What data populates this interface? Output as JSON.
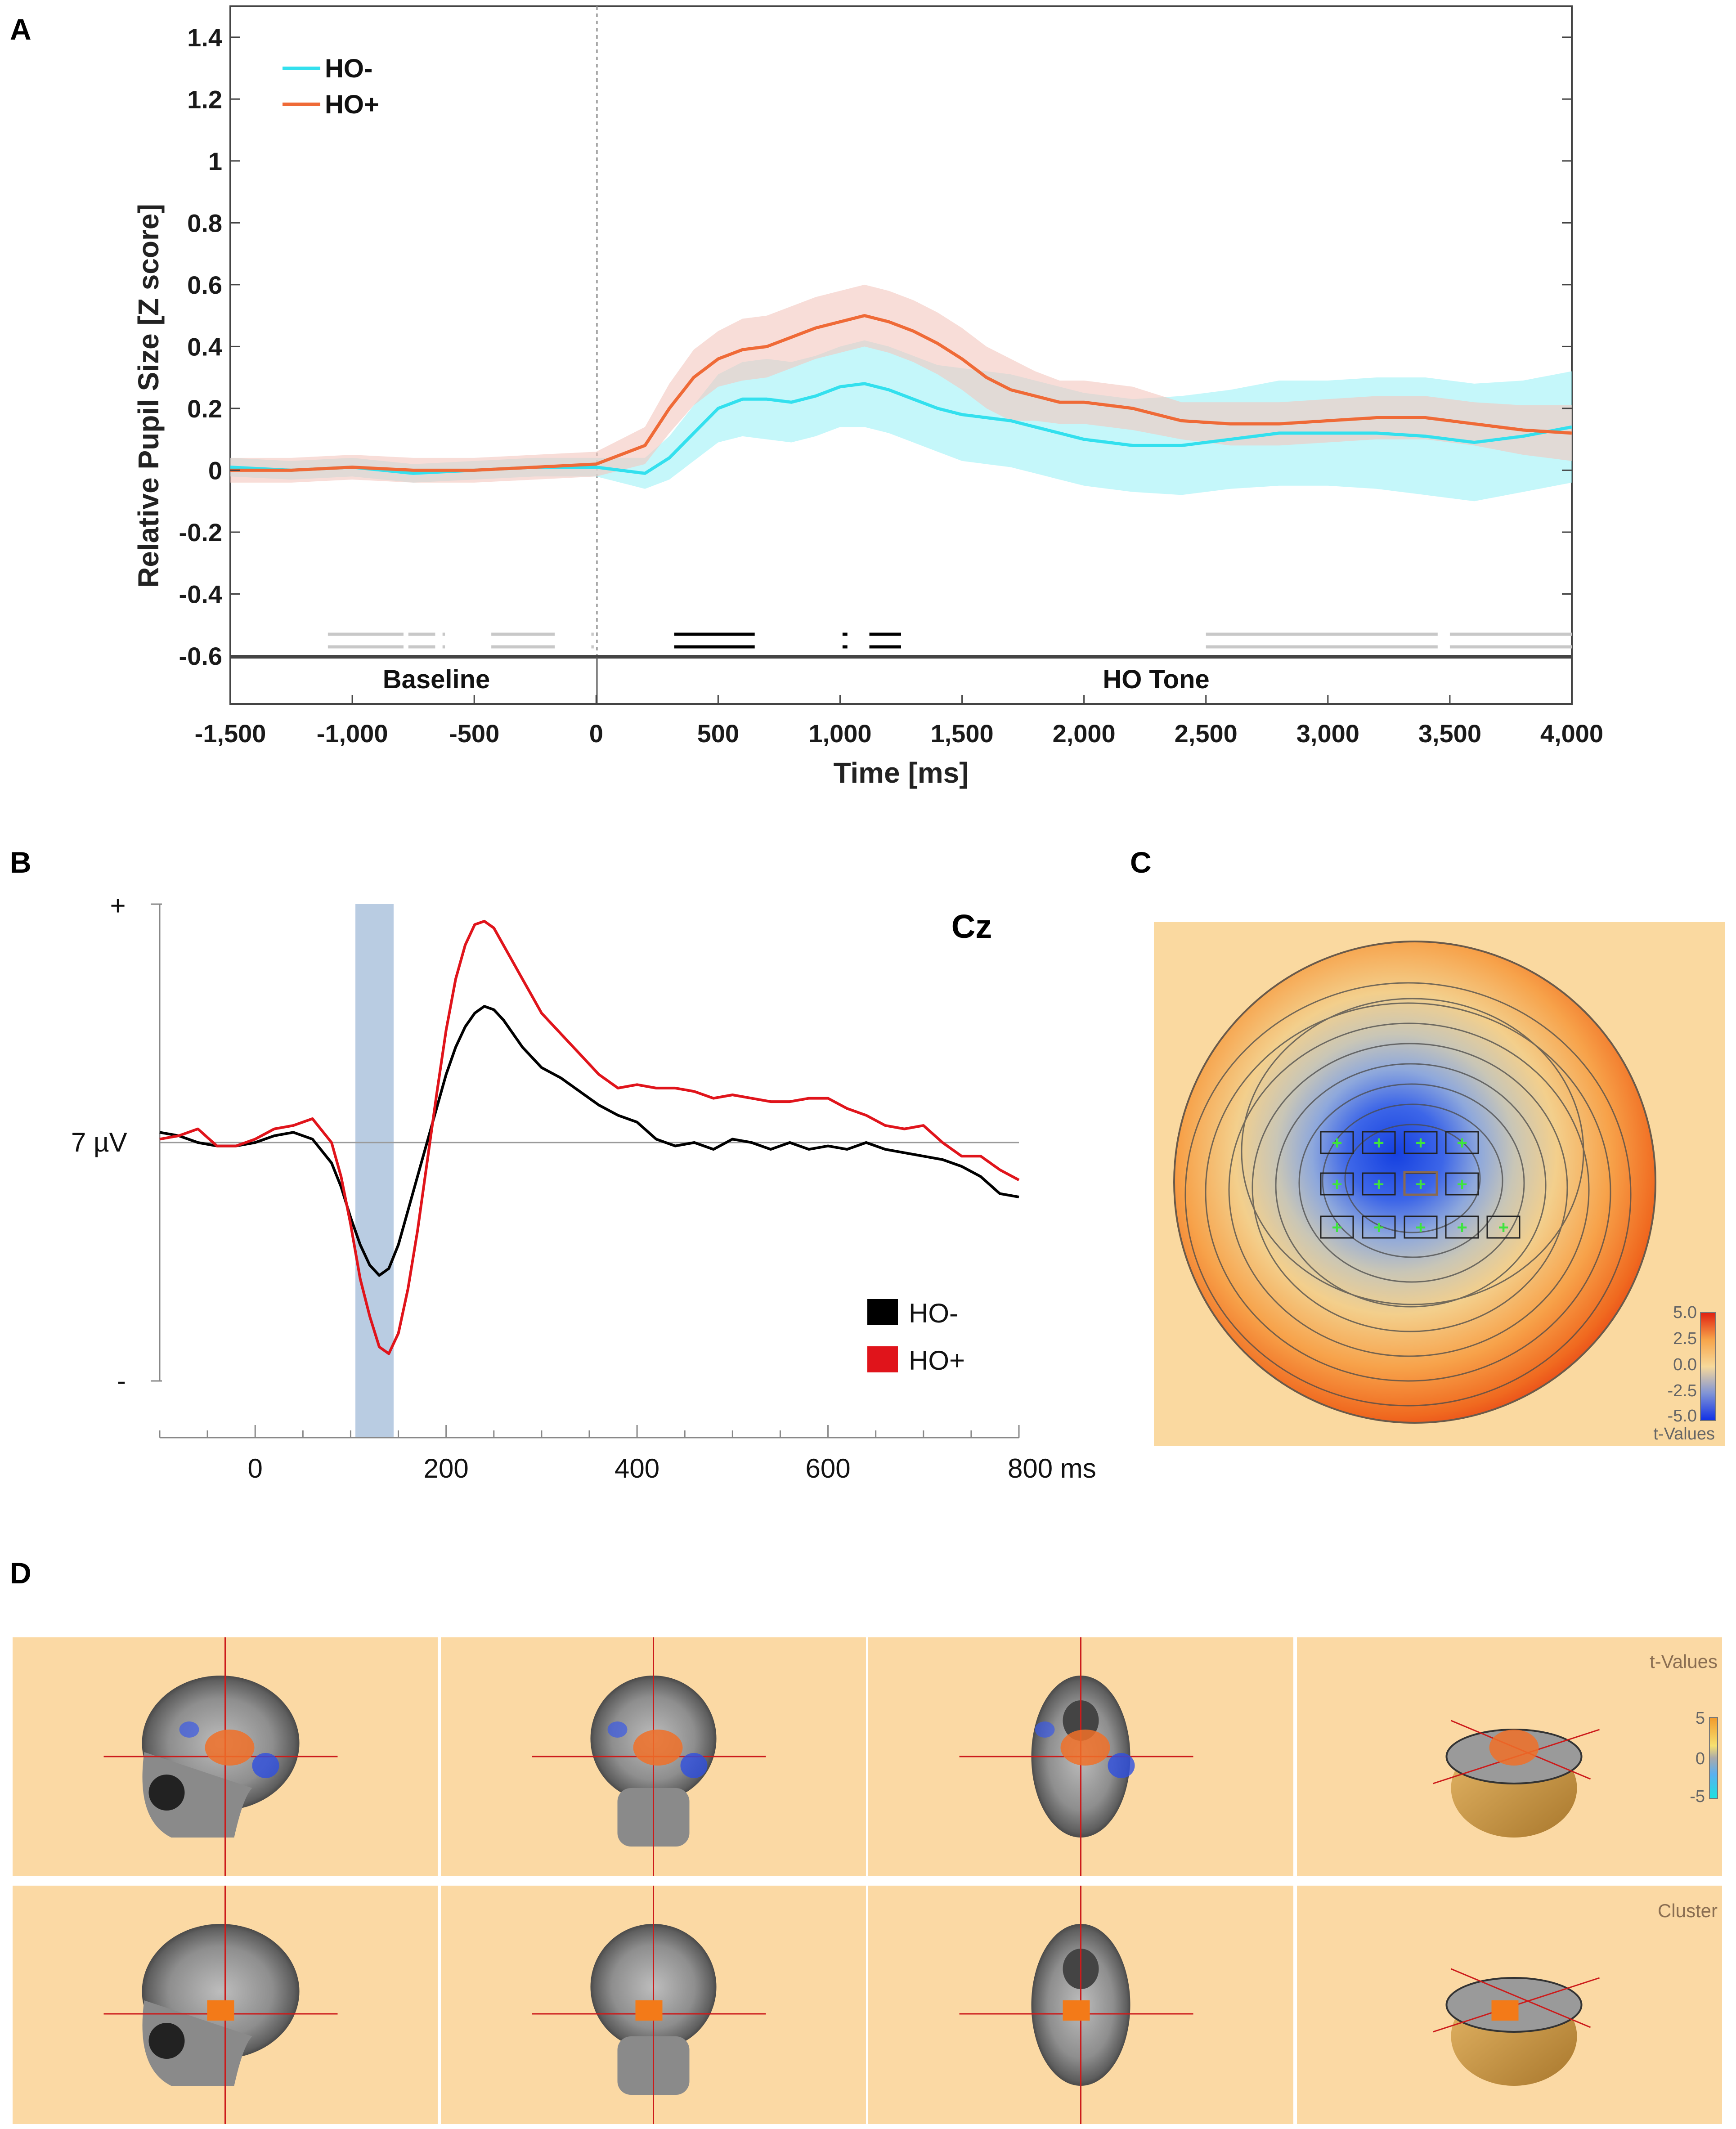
{
  "panels": {
    "A": "A",
    "B": "B",
    "C": "C",
    "D": "D"
  },
  "chart_data": [
    {
      "id": "A",
      "type": "line",
      "title": "",
      "xlabel": "Time [ms]",
      "ylabel": "Relative Pupil Size [Z score]",
      "xlim": [
        -1500,
        4000
      ],
      "ylim": [
        -0.6,
        1.5
      ],
      "xticks": [
        -1500,
        -1000,
        -500,
        0,
        500,
        1000,
        1500,
        2000,
        2500,
        3000,
        3500,
        4000
      ],
      "xtick_labels": [
        "-1,500",
        "-1,000",
        "-500",
        "0",
        "500",
        "1,000",
        "1,500",
        "2,000",
        "2,500",
        "3,000",
        "3,500",
        "4,000"
      ],
      "yticks": [
        -0.6,
        -0.4,
        -0.2,
        0,
        0.2,
        0.4,
        0.6,
        0.8,
        1,
        1.2,
        1.4
      ],
      "ytick_labels": [
        "-0.6",
        "-0.4",
        "-0.2",
        "0",
        "0.2",
        "0.4",
        "0.6",
        "0.8",
        "1",
        "1.2",
        "1.4"
      ],
      "phase_labels": [
        "Baseline",
        "HO Tone"
      ],
      "legend": "top-left",
      "x": [
        -1500,
        -1250,
        -1000,
        -750,
        -500,
        -250,
        0,
        200,
        300,
        400,
        500,
        600,
        700,
        800,
        900,
        1000,
        1100,
        1200,
        1300,
        1400,
        1500,
        1600,
        1700,
        1800,
        1900,
        2000,
        2100,
        2200,
        2400,
        2600,
        2800,
        3000,
        3200,
        3400,
        3600,
        3800,
        4000
      ],
      "series": [
        {
          "name": "HO-",
          "color": "#33e0ee",
          "band_color": "#9ff2f6",
          "values": [
            0.01,
            0.0,
            0.01,
            -0.01,
            0.0,
            0.01,
            0.01,
            -0.01,
            0.04,
            0.12,
            0.2,
            0.23,
            0.23,
            0.22,
            0.24,
            0.27,
            0.28,
            0.26,
            0.23,
            0.2,
            0.18,
            0.17,
            0.16,
            0.14,
            0.12,
            0.1,
            0.09,
            0.08,
            0.08,
            0.1,
            0.12,
            0.12,
            0.12,
            0.11,
            0.09,
            0.11,
            0.14
          ],
          "sem": [
            0.03,
            0.03,
            0.03,
            0.03,
            0.03,
            0.03,
            0.03,
            0.05,
            0.07,
            0.09,
            0.11,
            0.12,
            0.13,
            0.13,
            0.13,
            0.13,
            0.14,
            0.14,
            0.14,
            0.14,
            0.15,
            0.15,
            0.15,
            0.15,
            0.15,
            0.15,
            0.15,
            0.15,
            0.16,
            0.16,
            0.17,
            0.17,
            0.18,
            0.19,
            0.19,
            0.18,
            0.18
          ]
        },
        {
          "name": "HO+",
          "color": "#ef6a37",
          "band_color": "#f3c6be",
          "values": [
            0.0,
            0.0,
            0.01,
            0.0,
            0.0,
            0.01,
            0.02,
            0.08,
            0.2,
            0.3,
            0.36,
            0.39,
            0.4,
            0.43,
            0.46,
            0.48,
            0.5,
            0.48,
            0.45,
            0.41,
            0.36,
            0.3,
            0.26,
            0.24,
            0.22,
            0.22,
            0.21,
            0.2,
            0.16,
            0.15,
            0.15,
            0.16,
            0.17,
            0.17,
            0.15,
            0.13,
            0.12
          ],
          "sem": [
            0.04,
            0.04,
            0.04,
            0.04,
            0.04,
            0.04,
            0.04,
            0.06,
            0.08,
            0.09,
            0.09,
            0.1,
            0.1,
            0.1,
            0.1,
            0.1,
            0.1,
            0.1,
            0.1,
            0.1,
            0.1,
            0.1,
            0.1,
            0.08,
            0.07,
            0.07,
            0.07,
            0.07,
            0.06,
            0.07,
            0.07,
            0.07,
            0.07,
            0.07,
            0.07,
            0.08,
            0.09
          ]
        }
      ],
      "significance_segments_black": [
        [
          320,
          650
        ],
        [
          1010,
          1030
        ],
        [
          1120,
          1250
        ]
      ],
      "significance_segments_gray": [
        [
          -1100,
          -790
        ],
        [
          -770,
          -660
        ],
        [
          -630,
          -620
        ],
        [
          -430,
          -170
        ],
        [
          -20,
          -10
        ],
        [
          2500,
          3450
        ],
        [
          3500,
          4000
        ]
      ]
    },
    {
      "id": "B",
      "type": "line",
      "title": "Cz",
      "xlabel": "ms",
      "ylabel": "7 µV",
      "y_top_label": "+",
      "y_bottom_label": "-",
      "xlim": [
        -100,
        800
      ],
      "ylim": [
        -7,
        7
      ],
      "xticks": [
        0,
        200,
        400,
        600,
        800
      ],
      "xtick_labels": [
        "0",
        "200",
        "400",
        "600",
        "800 ms"
      ],
      "highlight_window": [
        105,
        145
      ],
      "legend": "bottom-right",
      "x": [
        -100,
        -80,
        -60,
        -40,
        -20,
        0,
        20,
        40,
        60,
        80,
        90,
        100,
        110,
        120,
        130,
        140,
        150,
        160,
        170,
        180,
        190,
        200,
        210,
        220,
        230,
        240,
        250,
        260,
        270,
        280,
        290,
        300,
        320,
        340,
        360,
        380,
        400,
        420,
        440,
        460,
        480,
        500,
        520,
        540,
        560,
        580,
        600,
        620,
        640,
        660,
        680,
        700,
        720,
        740,
        760,
        780,
        800
      ],
      "series": [
        {
          "name": "HO-",
          "color": "#000000",
          "values": [
            0.3,
            0.2,
            0.0,
            -0.1,
            -0.1,
            0.0,
            0.2,
            0.3,
            0.1,
            -0.6,
            -1.3,
            -2.2,
            -3.0,
            -3.6,
            -3.9,
            -3.7,
            -3.0,
            -2.0,
            -1.0,
            0.0,
            1.0,
            2.0,
            2.8,
            3.4,
            3.8,
            4.0,
            3.9,
            3.6,
            3.2,
            2.8,
            2.5,
            2.2,
            1.9,
            1.5,
            1.1,
            0.8,
            0.6,
            0.1,
            -0.1,
            0.0,
            -0.2,
            0.1,
            0.0,
            -0.2,
            0.0,
            -0.2,
            -0.1,
            -0.2,
            0.0,
            -0.2,
            -0.3,
            -0.4,
            -0.5,
            -0.7,
            -1.0,
            -1.5,
            -1.6
          ]
        },
        {
          "name": "HO+",
          "color": "#e0141b",
          "values": [
            0.1,
            0.2,
            0.4,
            -0.1,
            -0.1,
            0.1,
            0.4,
            0.5,
            0.7,
            0.0,
            -1.0,
            -2.4,
            -4.0,
            -5.1,
            -6.0,
            -6.2,
            -5.6,
            -4.3,
            -2.6,
            -0.6,
            1.4,
            3.3,
            4.8,
            5.8,
            6.4,
            6.5,
            6.3,
            5.8,
            5.3,
            4.8,
            4.3,
            3.8,
            3.2,
            2.6,
            2.0,
            1.6,
            1.7,
            1.6,
            1.6,
            1.5,
            1.3,
            1.4,
            1.3,
            1.2,
            1.2,
            1.3,
            1.3,
            1.0,
            0.8,
            0.5,
            0.4,
            0.5,
            0.0,
            -0.4,
            -0.4,
            -0.8,
            -1.1
          ]
        }
      ]
    }
  ],
  "panel_c": {
    "colorbar_ticks": [
      "5.0",
      "2.5",
      "0.0",
      "-2.5",
      "-5.0"
    ],
    "colorbar_label": "t-Values"
  },
  "panel_d": {
    "row_labels": [
      "t-Values",
      "Cluster"
    ],
    "colorbar_ticks": [
      "5",
      "0",
      "-5"
    ]
  }
}
